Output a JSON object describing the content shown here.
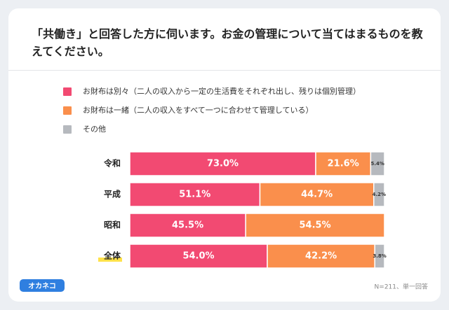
{
  "brand": "オカネコ",
  "chart_data": {
    "type": "stacked-bar-horizontal",
    "title": "「共働き」と回答した方に伺います。お金の管理について当てはまるものを教えてください。",
    "categories": [
      "令和",
      "平成",
      "昭和",
      "全体"
    ],
    "series": [
      {
        "name": "お財布は別々（二人の収入から一定の生活費をそれぞれ出し、残りは個別管理）",
        "color": "#f24a72",
        "values": [
          73.0,
          51.1,
          45.5,
          54.0
        ],
        "value_labels": [
          "73.0%",
          "51.1%",
          "45.5%",
          "54.0%"
        ]
      },
      {
        "name": "お財布は一緒（二人の収入をすべて一つに合わせて管理している）",
        "color": "#fa8f4c",
        "values": [
          21.6,
          44.7,
          54.5,
          42.2
        ],
        "value_labels": [
          "21.6%",
          "44.7%",
          "54.5%",
          "42.2%"
        ]
      },
      {
        "name": "その他",
        "color": "#b6b9be",
        "values": [
          5.4,
          4.2,
          null,
          3.8
        ],
        "value_labels": [
          "5.4%",
          "4.2%",
          null,
          "3.8%"
        ]
      }
    ],
    "xlim": [
      0,
      100
    ],
    "note": "N=211、単一回答"
  }
}
